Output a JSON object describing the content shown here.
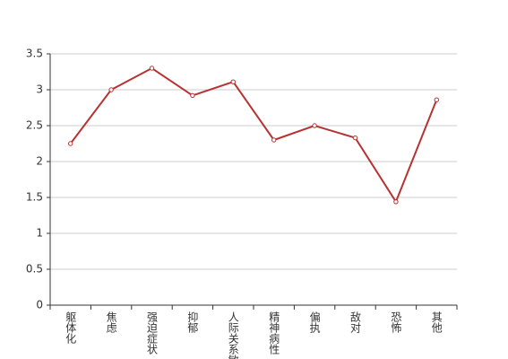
{
  "chart_data": {
    "type": "line",
    "categories": [
      "躯体化",
      "焦虑",
      "强迫症状",
      "抑郁",
      "人际关系敏感",
      "精神病性",
      "偏执",
      "敌对",
      "恐怖",
      "其他"
    ],
    "values": [
      2.25,
      3.0,
      3.3,
      2.92,
      3.11,
      2.3,
      2.5,
      2.33,
      1.44,
      2.86
    ],
    "color": "#b83232",
    "ylim": [
      0,
      3.5
    ],
    "yticks": [
      0,
      0.5,
      1,
      1.5,
      2,
      2.5,
      3,
      3.5
    ],
    "grid": true
  }
}
